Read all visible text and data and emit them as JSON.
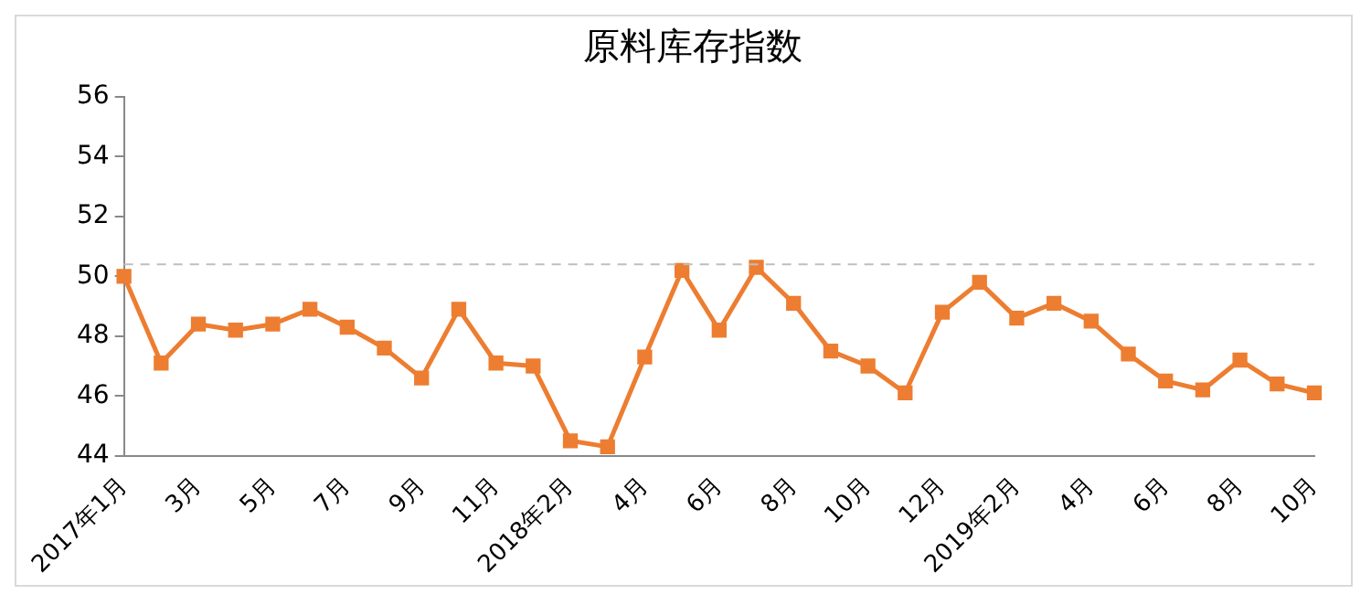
{
  "chart_data": {
    "type": "line",
    "title": "原料库存指数",
    "categories": [
      "2017年1月",
      null,
      "3月",
      null,
      "5月",
      null,
      "7月",
      null,
      "9月",
      null,
      "11月",
      null,
      "2018年2月",
      null,
      "4月",
      null,
      "6月",
      null,
      "8月",
      null,
      "10月",
      null,
      "12月",
      null,
      "2019年2月",
      null,
      "4月",
      null,
      "6月",
      null,
      "8月",
      null,
      "10月"
    ],
    "series": [
      {
        "color": "#ed7d31",
        "values": [
          50.0,
          47.1,
          48.4,
          48.2,
          48.4,
          48.9,
          48.3,
          47.6,
          46.6,
          48.9,
          47.1,
          47.0,
          44.5,
          44.3,
          47.3,
          50.2,
          48.2,
          50.3,
          49.1,
          47.5,
          47.0,
          46.1,
          48.8,
          49.8,
          48.6,
          49.1,
          48.5,
          47.4,
          46.5,
          46.2,
          47.2,
          46.4,
          46.1
        ]
      }
    ],
    "ylim": [
      44,
      56
    ],
    "yticks": [
      44,
      46,
      48,
      50,
      52,
      54,
      56
    ],
    "grid": false,
    "legend": false,
    "marker": "square",
    "line_style": "solid",
    "ref_lines": [
      {
        "axis": "y",
        "value": 50.4,
        "color": "#bfbfbf",
        "line_style": "dashed"
      }
    ]
  }
}
